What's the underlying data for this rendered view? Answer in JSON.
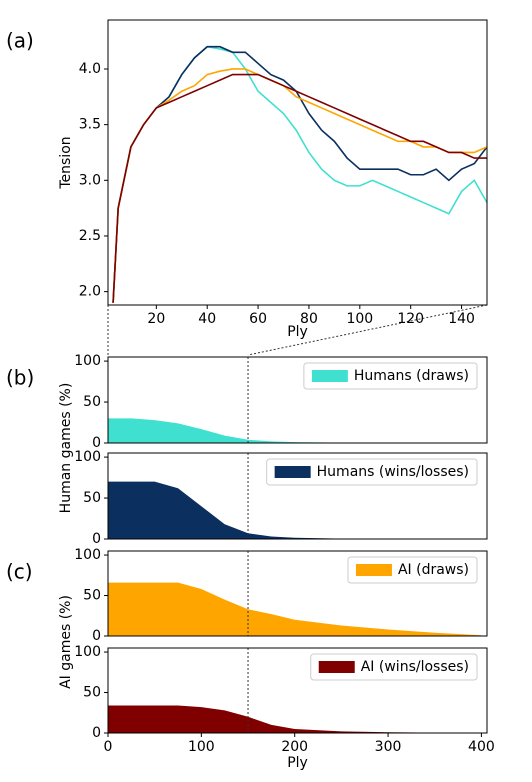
{
  "chart_data": [
    {
      "type": "line",
      "panel_label": "(a)",
      "ylabel": "Tension",
      "xlabel": "Ply",
      "x": [
        3,
        5,
        10,
        15,
        20,
        25,
        30,
        35,
        40,
        45,
        50,
        55,
        60,
        65,
        70,
        75,
        80,
        85,
        90,
        95,
        100,
        105,
        110,
        115,
        120,
        125,
        130,
        135,
        140,
        145,
        150
      ],
      "xlim": [
        1,
        150
      ],
      "xticks": [
        20,
        40,
        60,
        80,
        100,
        120,
        140
      ],
      "ylim": [
        1.88,
        4.44
      ],
      "yticks": [
        {
          "value": 2,
          "label": "2.0"
        },
        2.5,
        {
          "value": 3,
          "label": "3.0"
        },
        3.5,
        {
          "value": 4,
          "label": "4.0"
        }
      ],
      "series": [
        {
          "color": "#40e0d0",
          "values": [
            1.9,
            2.75,
            3.3,
            3.5,
            3.65,
            3.75,
            3.95,
            4.1,
            4.2,
            4.18,
            4.15,
            4.0,
            3.8,
            3.7,
            3.6,
            3.45,
            3.25,
            3.1,
            3.0,
            2.95,
            2.95,
            3.0,
            2.95,
            2.9,
            2.85,
            2.8,
            2.75,
            2.7,
            2.9,
            3.0,
            2.8
          ]
        },
        {
          "color": "#0b2f5e",
          "values": [
            1.9,
            2.75,
            3.3,
            3.5,
            3.65,
            3.75,
            3.95,
            4.1,
            4.2,
            4.2,
            4.15,
            4.15,
            4.05,
            3.95,
            3.9,
            3.8,
            3.6,
            3.45,
            3.35,
            3.2,
            3.1,
            3.1,
            3.1,
            3.1,
            3.05,
            3.05,
            3.1,
            3.0,
            3.1,
            3.15,
            3.3
          ]
        },
        {
          "color": "#ffa500",
          "values": [
            1.9,
            2.75,
            3.3,
            3.5,
            3.65,
            3.72,
            3.8,
            3.85,
            3.95,
            3.98,
            4.0,
            4.0,
            3.95,
            3.9,
            3.85,
            3.75,
            3.7,
            3.65,
            3.6,
            3.55,
            3.5,
            3.45,
            3.4,
            3.35,
            3.35,
            3.3,
            3.3,
            3.25,
            3.25,
            3.25,
            3.3
          ]
        },
        {
          "color": "#800000",
          "values": [
            1.9,
            2.75,
            3.3,
            3.5,
            3.65,
            3.7,
            3.75,
            3.8,
            3.85,
            3.9,
            3.95,
            3.95,
            3.95,
            3.9,
            3.85,
            3.8,
            3.75,
            3.7,
            3.65,
            3.6,
            3.55,
            3.5,
            3.45,
            3.4,
            3.35,
            3.35,
            3.3,
            3.25,
            3.25,
            3.2,
            3.2
          ]
        }
      ]
    },
    {
      "type": "area",
      "panel_label": "(b)",
      "x": [
        0,
        25,
        50,
        75,
        100,
        125,
        150,
        175,
        200,
        250,
        300,
        350,
        400
      ],
      "xlim": [
        0,
        406
      ],
      "ylim": [
        0,
        105
      ],
      "yticks": [
        0,
        50,
        100
      ],
      "series": [
        {
          "name": "Humans (draws)",
          "color": "#40e0d0",
          "values": [
            30,
            30,
            28,
            24,
            17,
            9,
            4,
            2,
            1,
            0.5,
            0,
            0,
            0
          ]
        }
      ]
    },
    {
      "type": "area",
      "ylabel": "Human games (%)",
      "x": [
        0,
        25,
        50,
        75,
        100,
        125,
        150,
        175,
        200,
        250,
        300,
        350,
        400
      ],
      "xlim": [
        0,
        406
      ],
      "ylim": [
        0,
        105
      ],
      "yticks": [
        0,
        50,
        100
      ],
      "series": [
        {
          "name": "Humans (wins/losses)",
          "color": "#0b2f5e",
          "values": [
            70,
            70,
            70,
            62,
            40,
            18,
            7,
            3,
            1.5,
            0.5,
            0,
            0,
            0
          ]
        }
      ]
    },
    {
      "type": "area",
      "panel_label": "(c)",
      "x": [
        0,
        25,
        50,
        75,
        100,
        125,
        150,
        175,
        200,
        250,
        300,
        350,
        400
      ],
      "xlim": [
        0,
        406
      ],
      "ylim": [
        0,
        105
      ],
      "yticks": [
        0,
        50,
        100
      ],
      "series": [
        {
          "name": "AI (draws)",
          "color": "#ffa500",
          "values": [
            66,
            66,
            66,
            66,
            58,
            45,
            33,
            27,
            20,
            13,
            8,
            4,
            1
          ]
        }
      ]
    },
    {
      "type": "area",
      "ylabel": "AI games (%)",
      "xlabel": "Ply",
      "x": [
        0,
        25,
        50,
        75,
        100,
        125,
        150,
        175,
        200,
        250,
        300,
        350,
        400
      ],
      "xlim": [
        0,
        406
      ],
      "ylim": [
        0,
        105
      ],
      "yticks": [
        0,
        50,
        100
      ],
      "xticks": [
        0,
        100,
        200,
        300,
        400
      ],
      "series": [
        {
          "name": "AI (wins/losses)",
          "color": "#800000",
          "values": [
            34,
            34,
            34,
            34,
            32,
            28,
            20,
            10,
            5,
            2,
            1,
            0.5,
            0
          ]
        }
      ]
    }
  ]
}
